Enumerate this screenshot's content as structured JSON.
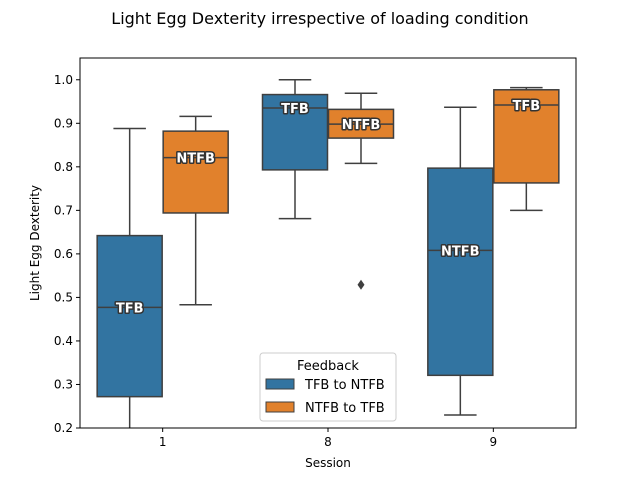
{
  "chart_data": {
    "type": "box",
    "title": "Light Egg Dexterity irrespective of loading condition",
    "xlabel": "Session",
    "ylabel": "Light Egg Dexterity",
    "ylim": [
      0.2,
      1.05
    ],
    "yticks": [
      "0.2",
      "0.3",
      "0.4",
      "0.5",
      "0.6",
      "0.7",
      "0.8",
      "0.9",
      "1.0"
    ],
    "categories": [
      "1",
      "8",
      "9"
    ],
    "legend": {
      "title": "Feedback",
      "position": "lower-center"
    },
    "series": [
      {
        "name": "TFB to NTFB",
        "color": "#3274a1",
        "boxes": [
          {
            "category": "1",
            "whisker_low": 0.2,
            "q1": 0.272,
            "median": 0.477,
            "q3": 0.642,
            "whisker_high": 0.888,
            "outliers": [],
            "label": "TFB"
          },
          {
            "category": "8",
            "whisker_low": 0.681,
            "q1": 0.793,
            "median": 0.935,
            "q3": 0.966,
            "whisker_high": 1.0,
            "outliers": [],
            "label": "TFB"
          },
          {
            "category": "9",
            "whisker_low": 0.23,
            "q1": 0.321,
            "median": 0.608,
            "q3": 0.797,
            "whisker_high": 0.937,
            "outliers": [],
            "label": "NTFB"
          }
        ]
      },
      {
        "name": "NTFB to TFB",
        "color": "#e1812c",
        "boxes": [
          {
            "category": "1",
            "whisker_low": 0.483,
            "q1": 0.694,
            "median": 0.821,
            "q3": 0.882,
            "whisker_high": 0.916,
            "outliers": [],
            "label": "NTFB"
          },
          {
            "category": "8",
            "whisker_low": 0.808,
            "q1": 0.866,
            "median": 0.898,
            "q3": 0.932,
            "whisker_high": 0.969,
            "outliers": [
              0.529
            ],
            "label": "NTFB"
          },
          {
            "category": "9",
            "whisker_low": 0.7,
            "q1": 0.763,
            "median": 0.942,
            "q3": 0.977,
            "whisker_high": 0.982,
            "outliers": [],
            "label": "TFB"
          }
        ]
      }
    ]
  }
}
